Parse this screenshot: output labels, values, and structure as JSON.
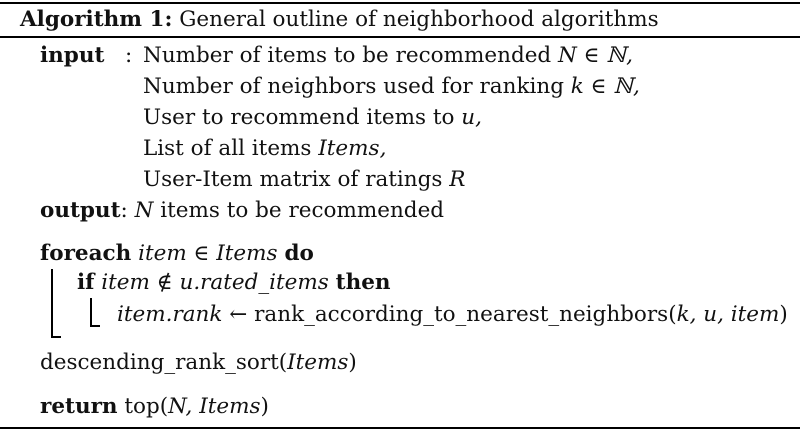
{
  "caption": {
    "label": "Algorithm 1:",
    "title": " General outline of neighborhood algorithms"
  },
  "input": {
    "keyword": "input",
    "separator": ":",
    "lines": [
      {
        "text": "Number of items to be recommended ",
        "math": "N ∈ ℕ,"
      },
      {
        "text": "Number of neighbors used for ranking ",
        "math": "k ∈ ℕ,"
      },
      {
        "text": "User to recommend items to ",
        "math": "u,"
      },
      {
        "text": "List of all items ",
        "math": "Items,"
      },
      {
        "text": "User-Item matrix of ratings ",
        "math": "R"
      }
    ]
  },
  "output": {
    "keyword": "output",
    "separator": ":",
    "math": "N",
    "text": " items to be recommended"
  },
  "foreach": {
    "keyword": "foreach",
    "var": "item ∈ Items",
    "do": "do"
  },
  "if": {
    "keyword": "if",
    "cond": "item ∉ u.rated_items",
    "then": "then"
  },
  "assign": {
    "lhs": "item.rank",
    "arrow": " ← ",
    "func": "rank_according_to_nearest_neighbors(",
    "args": "k, u, item",
    "close": ")"
  },
  "sort": {
    "func": "descending_rank_sort(",
    "arg": "Items",
    "close": ")"
  },
  "return": {
    "keyword": "return",
    "func": " top(",
    "args": "N, Items",
    "close": ")"
  }
}
